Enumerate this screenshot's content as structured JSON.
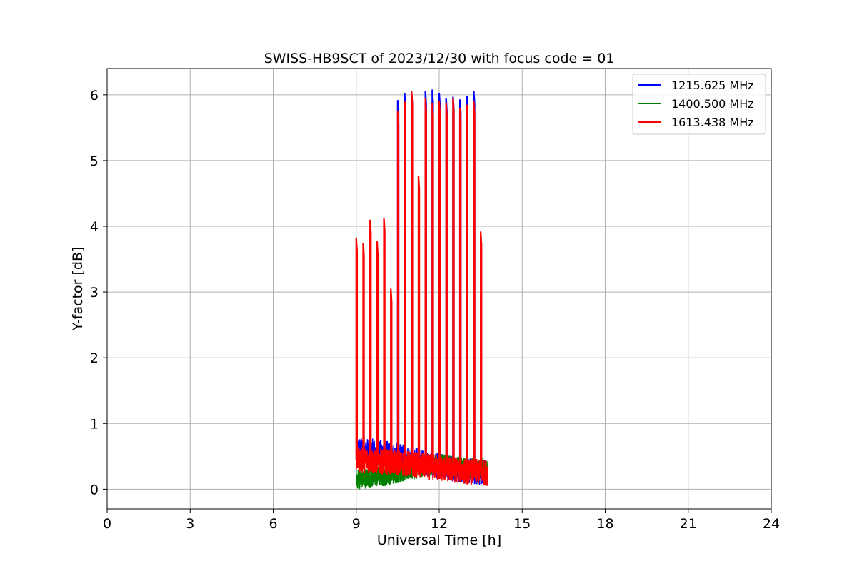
{
  "chart_data": {
    "type": "line",
    "title": "SWISS-HB9SCT of 2023/12/30 with focus code = 01",
    "xlabel": "Universal Time [h]",
    "ylabel": "Y-factor [dB]",
    "xlim": [
      0,
      24
    ],
    "ylim": [
      -0.3,
      6.4
    ],
    "x_ticks": [
      0,
      3,
      6,
      9,
      12,
      15,
      18,
      21,
      24
    ],
    "y_ticks": [
      0,
      1,
      2,
      3,
      4,
      5,
      6
    ],
    "grid": true,
    "legend_position": "top-right",
    "data_range": [
      9.0,
      13.75
    ],
    "series": [
      {
        "name": "1215.625 MHz",
        "color": "#0000ff",
        "baseline": [
          [
            9.0,
            0.6
          ],
          [
            10.0,
            0.55
          ],
          [
            11.0,
            0.45
          ],
          [
            12.0,
            0.35
          ],
          [
            13.0,
            0.28
          ],
          [
            13.75,
            0.25
          ]
        ],
        "peaks": [
          [
            10.5,
            5.92
          ],
          [
            10.75,
            6.03
          ],
          [
            11.0,
            6.05
          ],
          [
            11.5,
            6.06
          ],
          [
            11.75,
            6.08
          ],
          [
            12.0,
            6.03
          ],
          [
            12.25,
            5.95
          ],
          [
            12.5,
            5.97
          ],
          [
            12.75,
            5.93
          ],
          [
            13.0,
            5.98
          ],
          [
            13.25,
            6.06
          ]
        ]
      },
      {
        "name": "1400.500 MHz",
        "color": "#008000",
        "baseline": [
          [
            9.0,
            0.15
          ],
          [
            10.0,
            0.2
          ],
          [
            11.0,
            0.3
          ],
          [
            12.0,
            0.38
          ],
          [
            13.0,
            0.33
          ],
          [
            13.75,
            0.32
          ]
        ],
        "peaks": []
      },
      {
        "name": "1613.438 MHz",
        "color": "#ff0000",
        "baseline": [
          [
            9.0,
            0.45
          ],
          [
            10.0,
            0.42
          ],
          [
            11.0,
            0.38
          ],
          [
            12.0,
            0.32
          ],
          [
            13.0,
            0.27
          ],
          [
            13.75,
            0.25
          ]
        ],
        "peaks": [
          [
            9.0,
            3.82
          ],
          [
            9.25,
            3.75
          ],
          [
            9.5,
            4.1
          ],
          [
            9.75,
            3.78
          ],
          [
            10.0,
            4.13
          ],
          [
            10.25,
            3.05
          ],
          [
            10.5,
            5.75
          ],
          [
            10.75,
            5.9
          ],
          [
            11.0,
            6.05
          ],
          [
            11.25,
            4.77
          ],
          [
            11.5,
            5.95
          ],
          [
            11.75,
            5.88
          ],
          [
            12.0,
            5.9
          ],
          [
            12.25,
            5.88
          ],
          [
            12.5,
            5.95
          ],
          [
            12.75,
            5.8
          ],
          [
            13.0,
            5.85
          ],
          [
            13.25,
            5.9
          ],
          [
            13.5,
            3.92
          ]
        ]
      }
    ]
  }
}
